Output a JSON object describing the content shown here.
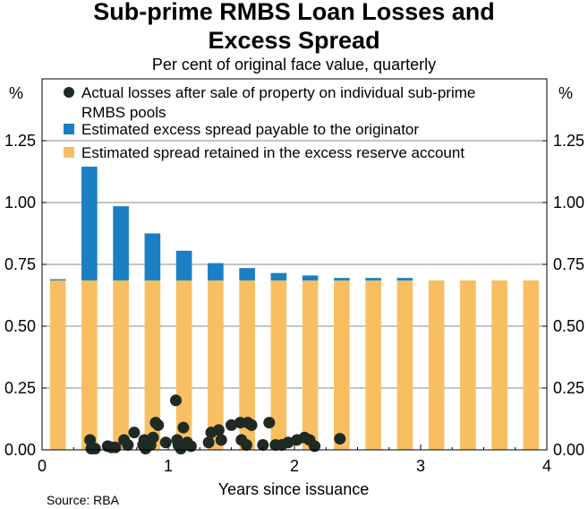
{
  "chart_data": {
    "type": "bar",
    "title_line1": "Sub-prime RMBS Loan Losses and",
    "title_line2": "Excess Spread",
    "subtitle": "Per cent of original face value, quarterly",
    "xlabel": "Years since issuance",
    "ylabel_left": "%",
    "ylabel_right": "%",
    "source": "Source: RBA",
    "xlim": [
      0,
      4
    ],
    "ylim": [
      0,
      1.5
    ],
    "x_ticks": [
      0,
      1,
      2,
      3,
      4
    ],
    "x_tick_labels": [
      "0",
      "1",
      "2",
      "3",
      "4"
    ],
    "y_ticks": [
      0,
      0.25,
      0.5,
      0.75,
      1.0,
      1.25
    ],
    "y_tick_labels": [
      "0.00",
      "0.25",
      "0.50",
      "0.75",
      "1.00",
      "1.25"
    ],
    "legend": [
      {
        "kind": "dot",
        "line1": "Actual losses after sale of property on individual sub-prime",
        "line2": "RMBS pools"
      },
      {
        "kind": "square-blue",
        "line1": "Estimated excess spread payable to the originator"
      },
      {
        "kind": "square-orange",
        "line1": "Estimated spread retained in the excess reserve account"
      }
    ],
    "colors": {
      "retained": "#F8BF62",
      "payable": "#1A7FC3",
      "dots": "#1F2A22",
      "grid": "#888888"
    },
    "categories": [
      0.125,
      0.375,
      0.625,
      0.875,
      1.125,
      1.375,
      1.625,
      1.875,
      2.125,
      2.375,
      2.625,
      2.875,
      3.125,
      3.375,
      3.625,
      3.875
    ],
    "series": [
      {
        "name": "Estimated spread retained in the excess reserve account",
        "values": [
          0.685,
          0.685,
          0.685,
          0.685,
          0.685,
          0.685,
          0.685,
          0.685,
          0.685,
          0.685,
          0.685,
          0.685,
          0.685,
          0.685,
          0.685,
          0.685
        ]
      },
      {
        "name": "Estimated excess spread payable to the originator",
        "values": [
          0.005,
          0.46,
          0.3,
          0.19,
          0.12,
          0.07,
          0.05,
          0.03,
          0.02,
          0.01,
          0.01,
          0.01,
          0,
          0,
          0,
          0
        ]
      }
    ],
    "scatter": {
      "name": "Actual losses after sale of property on individual sub-prime RMBS pools",
      "points": [
        [
          0.38,
          0.04
        ],
        [
          0.39,
          0.005
        ],
        [
          0.42,
          0.005
        ],
        [
          0.52,
          0.015
        ],
        [
          0.55,
          0.01
        ],
        [
          0.58,
          0.01
        ],
        [
          0.65,
          0.04
        ],
        [
          0.68,
          0.02
        ],
        [
          0.73,
          0.07
        ],
        [
          0.8,
          0.02
        ],
        [
          0.81,
          0.04
        ],
        [
          0.82,
          0.005
        ],
        [
          0.86,
          0.02
        ],
        [
          0.88,
          0.05
        ],
        [
          0.9,
          0.11
        ],
        [
          0.92,
          0.1
        ],
        [
          0.98,
          0.03
        ],
        [
          1.06,
          0.2
        ],
        [
          1.07,
          0.04
        ],
        [
          1.08,
          0.02
        ],
        [
          1.1,
          0.005
        ],
        [
          1.12,
          0.09
        ],
        [
          1.15,
          0.03
        ],
        [
          1.18,
          0.015
        ],
        [
          1.32,
          0.03
        ],
        [
          1.34,
          0.07
        ],
        [
          1.4,
          0.08
        ],
        [
          1.42,
          0.04
        ],
        [
          1.5,
          0.1
        ],
        [
          1.57,
          0.11
        ],
        [
          1.58,
          0.04
        ],
        [
          1.62,
          0.02
        ],
        [
          1.63,
          0.11
        ],
        [
          1.66,
          0.1
        ],
        [
          1.75,
          0.02
        ],
        [
          1.8,
          0.11
        ],
        [
          1.85,
          0.02
        ],
        [
          1.9,
          0.02
        ],
        [
          1.95,
          0.03
        ],
        [
          2.02,
          0.04
        ],
        [
          2.08,
          0.05
        ],
        [
          2.12,
          0.04
        ],
        [
          2.16,
          0.015
        ],
        [
          2.36,
          0.045
        ]
      ]
    }
  }
}
